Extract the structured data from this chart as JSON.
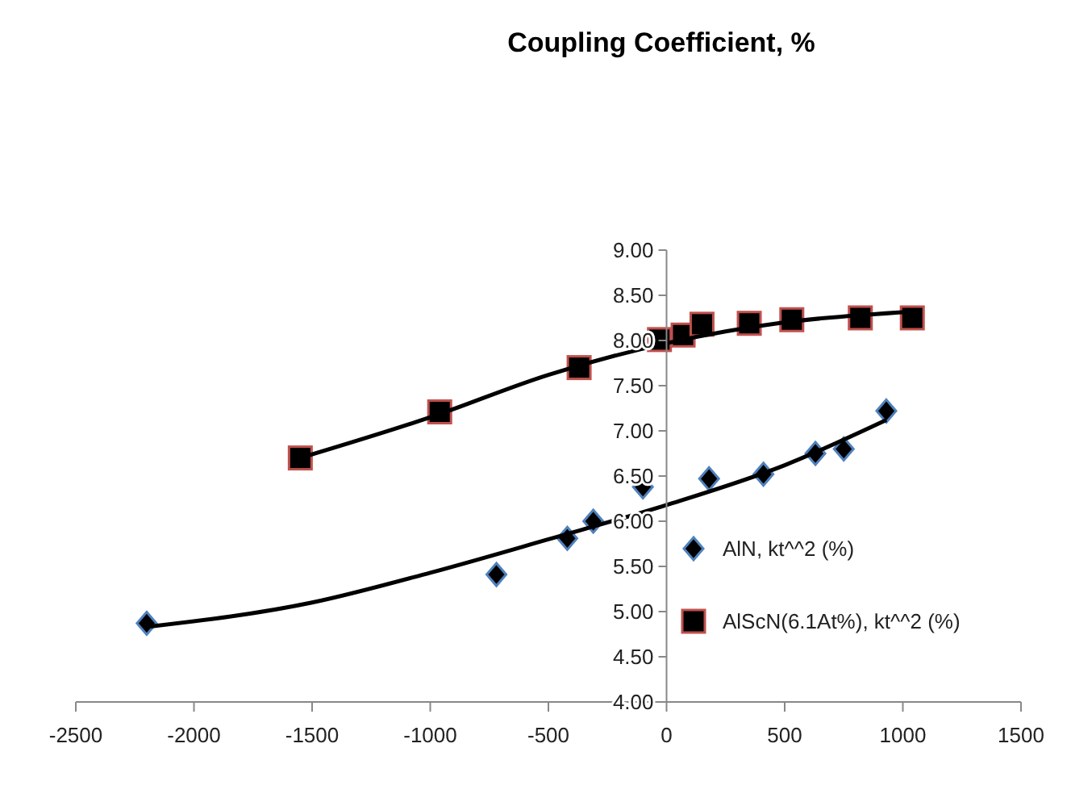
{
  "chart_data": {
    "type": "scatter",
    "title": "Coupling Coefficient, %",
    "xlim": [
      -2500,
      1500
    ],
    "xticks": [
      -2500,
      -2000,
      -1500,
      -1000,
      -500,
      0,
      500,
      1000,
      1500
    ],
    "ylim": [
      4,
      9
    ],
    "yticks": [
      {
        "value": 4,
        "label": "4.00"
      },
      {
        "value": 4.5,
        "label": "4.50"
      },
      {
        "value": 5,
        "label": "5.00"
      },
      {
        "value": 5.5,
        "label": "5.50"
      },
      {
        "value": 6,
        "label": "6.00"
      },
      {
        "value": 6.5,
        "label": "6.50"
      },
      {
        "value": 7,
        "label": "7.00"
      },
      {
        "value": 7.5,
        "label": "7.50"
      },
      {
        "value": 8,
        "label": "8.00"
      },
      {
        "value": 8.5,
        "label": "8.50"
      },
      {
        "value": 9,
        "label": "9.00"
      }
    ],
    "grid": false,
    "legend": "right",
    "series": [
      {
        "name": "AlN, kt^^2 (%)",
        "color": "#000000",
        "marker": "diamond",
        "x": [
          -2200,
          -720,
          -420,
          -310,
          -100,
          180,
          410,
          630,
          750,
          930
        ],
        "values": [
          4.87,
          5.41,
          5.81,
          6.0,
          6.38,
          6.47,
          6.52,
          6.75,
          6.8,
          7.22
        ]
      },
      {
        "name": "AlScN(6.1At%), kt^^2 (%)",
        "color": "#000000",
        "marker": "square",
        "x": [
          -1550,
          -960,
          -370,
          -30,
          70,
          150,
          350,
          530,
          820,
          1040
        ],
        "values": [
          6.7,
          7.21,
          7.7,
          8.01,
          8.06,
          8.18,
          8.19,
          8.23,
          8.25,
          8.25
        ]
      },
      {
        "type": "line",
        "color": "#000000",
        "x": [
          -2200,
          -1500,
          -1000,
          -500,
          0,
          500,
          930
        ],
        "values": [
          4.83,
          5.1,
          5.43,
          5.8,
          6.18,
          6.62,
          7.12
        ]
      },
      {
        "type": "line",
        "color": "#000000",
        "x": [
          -1550,
          -1000,
          -500,
          0,
          500,
          1040
        ],
        "values": [
          6.7,
          7.15,
          7.62,
          7.97,
          8.2,
          8.32
        ]
      }
    ]
  }
}
